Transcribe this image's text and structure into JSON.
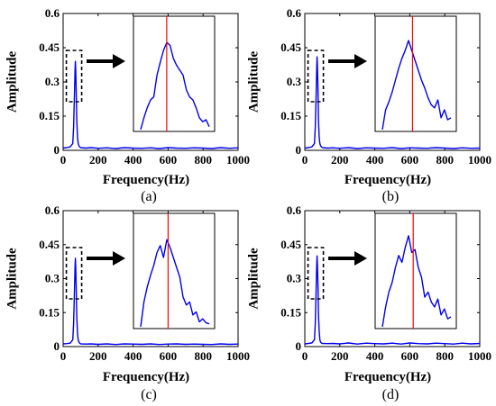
{
  "chart_data": [
    {
      "type": "line",
      "panel_label": "(a)",
      "xlabel": "Frequency(Hz)",
      "ylabel": "Amplitude",
      "xlim": [
        0,
        1000
      ],
      "ylim": [
        0,
        0.6
      ],
      "xticks": [
        0,
        200,
        400,
        600,
        800,
        1000
      ],
      "yticks": [
        0,
        0.15,
        0.3,
        0.45,
        0.6
      ],
      "xtick_labels": [
        "0",
        "200",
        "400",
        "600",
        "800",
        "1000"
      ],
      "ytick_labels": [
        "0",
        "0.15",
        "0.3",
        "0.45",
        "0.6"
      ],
      "line_color": "#0000ee",
      "series": [
        {
          "x": [
            0,
            20,
            40,
            55,
            60,
            65,
            68,
            70,
            72,
            75,
            78,
            82,
            86,
            90,
            95,
            100,
            130,
            160,
            200,
            250,
            300,
            350,
            400,
            450,
            500,
            550,
            600,
            650,
            700,
            750,
            800,
            850,
            900,
            950,
            1000
          ],
          "y": [
            0.01,
            0.012,
            0.015,
            0.03,
            0.1,
            0.25,
            0.35,
            0.39,
            0.35,
            0.26,
            0.14,
            0.06,
            0.03,
            0.02,
            0.015,
            0.012,
            0.01,
            0.012,
            0.009,
            0.011,
            0.008,
            0.012,
            0.01,
            0.009,
            0.011,
            0.008,
            0.012,
            0.01,
            0.009,
            0.011,
            0.01,
            0.008,
            0.012,
            0.009,
            0.011
          ]
        }
      ],
      "zoom_inset": {
        "profile": [
          0.0,
          0.12,
          0.22,
          0.3,
          0.33,
          0.55,
          0.68,
          0.8,
          0.88,
          0.85,
          0.72,
          0.65,
          0.6,
          0.55,
          0.4,
          0.33,
          0.3,
          0.22,
          0.12,
          0.08,
          0.1,
          0.03
        ],
        "marker_fraction": 0.38,
        "marker_color": "#ff0000"
      }
    },
    {
      "type": "line",
      "panel_label": "(b)",
      "xlabel": "Frequency(Hz)",
      "ylabel": "Amplitude",
      "xlim": [
        0,
        1000
      ],
      "ylim": [
        0,
        0.6
      ],
      "xticks": [
        0,
        200,
        400,
        600,
        800,
        1000
      ],
      "yticks": [
        0,
        0.15,
        0.3,
        0.45,
        0.6
      ],
      "xtick_labels": [
        "0",
        "200",
        "400",
        "600",
        "800",
        "1000"
      ],
      "ytick_labels": [
        "0",
        "0.15",
        "0.3",
        "0.45",
        "0.6"
      ],
      "line_color": "#0000ee",
      "series": [
        {
          "x": [
            0,
            20,
            40,
            55,
            60,
            65,
            68,
            70,
            72,
            75,
            78,
            82,
            86,
            90,
            95,
            100,
            130,
            160,
            200,
            250,
            300,
            350,
            400,
            450,
            500,
            550,
            600,
            650,
            700,
            750,
            800,
            850,
            900,
            950,
            1000
          ],
          "y": [
            0.01,
            0.012,
            0.015,
            0.03,
            0.1,
            0.25,
            0.36,
            0.41,
            0.37,
            0.27,
            0.14,
            0.06,
            0.03,
            0.02,
            0.015,
            0.012,
            0.01,
            0.011,
            0.009,
            0.012,
            0.008,
            0.011,
            0.01,
            0.009,
            0.012,
            0.008,
            0.011,
            0.01,
            0.009,
            0.012,
            0.01,
            0.008,
            0.011,
            0.009,
            0.01
          ]
        }
      ],
      "zoom_inset": {
        "profile": [
          0.0,
          0.2,
          0.28,
          0.38,
          0.5,
          0.62,
          0.72,
          0.8,
          0.9,
          0.8,
          0.7,
          0.6,
          0.5,
          0.42,
          0.32,
          0.25,
          0.22,
          0.3,
          0.12,
          0.2,
          0.1,
          0.12
        ],
        "marker_fraction": 0.44,
        "marker_color": "#ff0000"
      }
    },
    {
      "type": "line",
      "panel_label": "(c)",
      "xlabel": "Frequency(Hz)",
      "ylabel": "Amplitude",
      "xlim": [
        0,
        1000
      ],
      "ylim": [
        0,
        0.6
      ],
      "xticks": [
        0,
        200,
        400,
        600,
        800,
        1000
      ],
      "yticks": [
        0,
        0.15,
        0.3,
        0.45,
        0.6
      ],
      "xtick_labels": [
        "0",
        "200",
        "400",
        "600",
        "800",
        "1000"
      ],
      "ytick_labels": [
        "0",
        "0.15",
        "0.3",
        "0.45",
        "0.6"
      ],
      "line_color": "#0000ee",
      "series": [
        {
          "x": [
            0,
            20,
            40,
            55,
            60,
            65,
            68,
            70,
            72,
            75,
            78,
            82,
            86,
            90,
            95,
            100,
            130,
            160,
            200,
            250,
            300,
            350,
            400,
            450,
            500,
            550,
            600,
            650,
            700,
            750,
            800,
            850,
            900,
            950,
            1000
          ],
          "y": [
            0.012,
            0.013,
            0.015,
            0.03,
            0.1,
            0.25,
            0.35,
            0.39,
            0.35,
            0.26,
            0.14,
            0.06,
            0.03,
            0.02,
            0.015,
            0.012,
            0.011,
            0.012,
            0.01,
            0.012,
            0.009,
            0.012,
            0.011,
            0.01,
            0.012,
            0.009,
            0.011,
            0.012,
            0.01,
            0.011,
            0.01,
            0.009,
            0.012,
            0.01,
            0.011
          ]
        }
      ],
      "zoom_inset": {
        "profile": [
          0.0,
          0.25,
          0.4,
          0.52,
          0.62,
          0.75,
          0.82,
          0.7,
          0.88,
          0.8,
          0.7,
          0.6,
          0.5,
          0.3,
          0.22,
          0.25,
          0.12,
          0.15,
          0.05,
          0.08,
          0.04,
          0.03
        ],
        "marker_fraction": 0.4,
        "marker_color": "#ff0000"
      }
    },
    {
      "type": "line",
      "panel_label": "(d)",
      "xlabel": "Frequency(Hz)",
      "ylabel": "Amplitude",
      "xlim": [
        0,
        1000
      ],
      "ylim": [
        0,
        0.6
      ],
      "xticks": [
        0,
        200,
        400,
        600,
        800,
        1000
      ],
      "yticks": [
        0,
        0.15,
        0.3,
        0.45,
        0.6
      ],
      "xtick_labels": [
        "0",
        "200",
        "400",
        "600",
        "800",
        "1000"
      ],
      "ytick_labels": [
        "0",
        "0.15",
        "0.3",
        "0.45",
        "0.6"
      ],
      "line_color": "#0000ee",
      "series": [
        {
          "x": [
            0,
            20,
            40,
            55,
            60,
            65,
            68,
            70,
            72,
            75,
            78,
            82,
            86,
            90,
            95,
            100,
            130,
            160,
            200,
            250,
            300,
            350,
            400,
            450,
            500,
            550,
            600,
            650,
            700,
            750,
            800,
            850,
            900,
            950,
            1000
          ],
          "y": [
            0.012,
            0.014,
            0.016,
            0.03,
            0.1,
            0.26,
            0.36,
            0.4,
            0.36,
            0.27,
            0.15,
            0.07,
            0.03,
            0.02,
            0.016,
            0.014,
            0.013,
            0.014,
            0.012,
            0.016,
            0.011,
            0.015,
            0.013,
            0.012,
            0.015,
            0.011,
            0.016,
            0.013,
            0.012,
            0.015,
            0.013,
            0.011,
            0.015,
            0.012,
            0.014
          ]
        }
      ],
      "zoom_inset": {
        "profile": [
          0.0,
          0.2,
          0.35,
          0.45,
          0.6,
          0.72,
          0.65,
          0.8,
          0.92,
          0.75,
          0.78,
          0.6,
          0.5,
          0.3,
          0.35,
          0.25,
          0.2,
          0.28,
          0.12,
          0.18,
          0.08,
          0.1
        ],
        "marker_fraction": 0.45,
        "marker_color": "#ff0000"
      }
    }
  ]
}
